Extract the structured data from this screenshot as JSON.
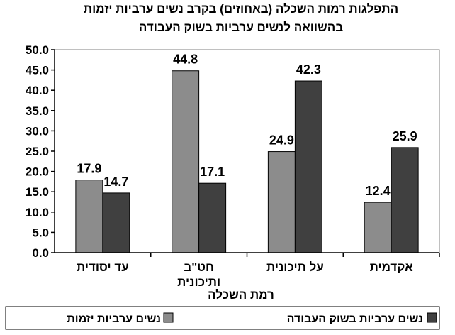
{
  "chart_data": {
    "type": "bar",
    "title_lines": [
      "התפלגות רמות השכלה (באחוזים) בקרב נשים ערביות יזמות",
      "בהשוואה לנשים  ערביות בשוק העבודה"
    ],
    "categories": [
      [
        "עד יסודית"
      ],
      [
        "חט\"ב",
        "ותיכונית"
      ],
      [
        "על תיכונית"
      ],
      [
        "אקדמית"
      ]
    ],
    "series": [
      {
        "name": "נשים ערביות יזמות",
        "values": [
          17.9,
          44.8,
          24.9,
          12.4
        ],
        "value_labels": [
          "17.9",
          "44.8",
          "24.9",
          "12.4"
        ],
        "color": "#8c8c8c"
      },
      {
        "name": "נשים ערביות בשוק העבודה",
        "values": [
          14.7,
          17.1,
          42.3,
          25.9
        ],
        "value_labels": [
          "14.7",
          "17.1",
          "42.3",
          "25.9"
        ],
        "color": "#404040"
      }
    ],
    "xlabel": "רמת השכלה",
    "ylabel": "",
    "ylim": [
      0,
      50
    ],
    "yticks": [
      "0.0",
      "5.0",
      "10.0",
      "15.0",
      "20.0",
      "25.0",
      "30.0",
      "35.0",
      "40.0",
      "45.0",
      "50.0"
    ],
    "grid": false,
    "legend_position": "bottom"
  }
}
